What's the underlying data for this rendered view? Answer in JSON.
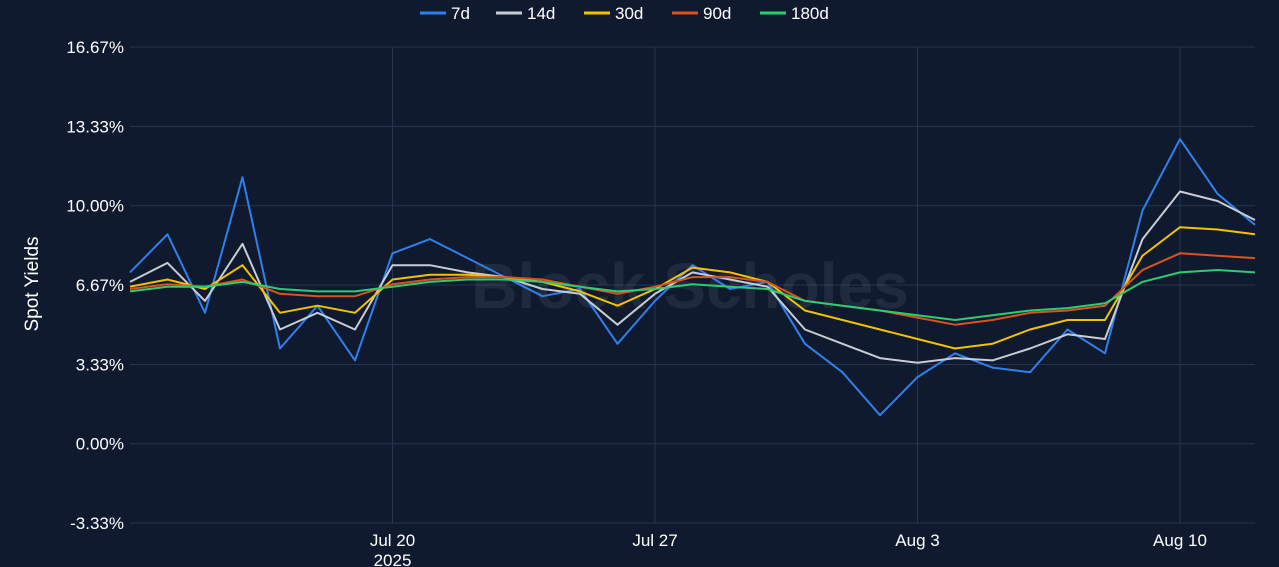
{
  "chart_data": {
    "type": "line",
    "ylabel": "Spot Yields",
    "ylim": [
      -3.33,
      16.67
    ],
    "y_ticks": [
      "16.67%",
      "13.33%",
      "10.00%",
      "6.67%",
      "3.33%",
      "0.00%",
      "-3.33%"
    ],
    "y_tick_values": [
      16.67,
      13.33,
      10.0,
      6.67,
      3.33,
      0.0,
      -3.33
    ],
    "x_range": [
      "2025-07-13",
      "2025-08-12"
    ],
    "x_ticks": [
      {
        "date": "2025-07-20",
        "label": "Jul 20",
        "sublabel": "2025"
      },
      {
        "date": "2025-07-27",
        "label": "Jul 27",
        "sublabel": ""
      },
      {
        "date": "2025-08-03",
        "label": "Aug 3",
        "sublabel": ""
      },
      {
        "date": "2025-08-10",
        "label": "Aug 10",
        "sublabel": ""
      }
    ],
    "grid": true,
    "legend_position": "top-center",
    "watermark": "Block Scholes",
    "series": [
      {
        "name": "7d",
        "color": "#2f80ed",
        "points": [
          [
            "2025-07-13",
            7.2
          ],
          [
            "2025-07-14",
            8.8
          ],
          [
            "2025-07-15",
            5.5
          ],
          [
            "2025-07-16",
            11.2
          ],
          [
            "2025-07-17",
            4.0
          ],
          [
            "2025-07-18",
            5.8
          ],
          [
            "2025-07-19",
            3.5
          ],
          [
            "2025-07-20",
            8.0
          ],
          [
            "2025-07-21",
            8.6
          ],
          [
            "2025-07-22",
            7.8
          ],
          [
            "2025-07-23",
            7.0
          ],
          [
            "2025-07-24",
            6.2
          ],
          [
            "2025-07-25",
            6.5
          ],
          [
            "2025-07-26",
            4.2
          ],
          [
            "2025-07-27",
            6.0
          ],
          [
            "2025-07-28",
            7.5
          ],
          [
            "2025-07-29",
            6.5
          ],
          [
            "2025-07-30",
            6.8
          ],
          [
            "2025-07-31",
            4.2
          ],
          [
            "2025-08-01",
            3.0
          ],
          [
            "2025-08-02",
            1.2
          ],
          [
            "2025-08-03",
            2.8
          ],
          [
            "2025-08-04",
            3.8
          ],
          [
            "2025-08-05",
            3.2
          ],
          [
            "2025-08-06",
            3.0
          ],
          [
            "2025-08-07",
            4.8
          ],
          [
            "2025-08-08",
            3.8
          ],
          [
            "2025-08-09",
            9.8
          ],
          [
            "2025-08-10",
            12.8
          ],
          [
            "2025-08-11",
            10.5
          ],
          [
            "2025-08-12",
            9.2
          ]
        ]
      },
      {
        "name": "14d",
        "color": "#c8ccd4",
        "points": [
          [
            "2025-07-13",
            6.8
          ],
          [
            "2025-07-14",
            7.6
          ],
          [
            "2025-07-15",
            6.0
          ],
          [
            "2025-07-16",
            8.4
          ],
          [
            "2025-07-17",
            4.8
          ],
          [
            "2025-07-18",
            5.5
          ],
          [
            "2025-07-19",
            4.8
          ],
          [
            "2025-07-20",
            7.5
          ],
          [
            "2025-07-21",
            7.5
          ],
          [
            "2025-07-22",
            7.2
          ],
          [
            "2025-07-23",
            7.0
          ],
          [
            "2025-07-24",
            6.5
          ],
          [
            "2025-07-25",
            6.3
          ],
          [
            "2025-07-26",
            5.0
          ],
          [
            "2025-07-27",
            6.3
          ],
          [
            "2025-07-28",
            7.2
          ],
          [
            "2025-07-29",
            6.9
          ],
          [
            "2025-07-30",
            6.6
          ],
          [
            "2025-07-31",
            4.8
          ],
          [
            "2025-08-01",
            4.2
          ],
          [
            "2025-08-02",
            3.6
          ],
          [
            "2025-08-03",
            3.4
          ],
          [
            "2025-08-04",
            3.6
          ],
          [
            "2025-08-05",
            3.5
          ],
          [
            "2025-08-06",
            4.0
          ],
          [
            "2025-08-07",
            4.6
          ],
          [
            "2025-08-08",
            4.4
          ],
          [
            "2025-08-09",
            8.6
          ],
          [
            "2025-08-10",
            10.6
          ],
          [
            "2025-08-11",
            10.2
          ],
          [
            "2025-08-12",
            9.4
          ]
        ]
      },
      {
        "name": "30d",
        "color": "#f2c200",
        "points": [
          [
            "2025-07-13",
            6.6
          ],
          [
            "2025-07-14",
            6.9
          ],
          [
            "2025-07-15",
            6.5
          ],
          [
            "2025-07-16",
            7.5
          ],
          [
            "2025-07-17",
            5.5
          ],
          [
            "2025-07-18",
            5.8
          ],
          [
            "2025-07-19",
            5.5
          ],
          [
            "2025-07-20",
            6.9
          ],
          [
            "2025-07-21",
            7.1
          ],
          [
            "2025-07-22",
            7.1
          ],
          [
            "2025-07-23",
            7.0
          ],
          [
            "2025-07-24",
            6.8
          ],
          [
            "2025-07-25",
            6.4
          ],
          [
            "2025-07-26",
            5.8
          ],
          [
            "2025-07-27",
            6.5
          ],
          [
            "2025-07-28",
            7.4
          ],
          [
            "2025-07-29",
            7.2
          ],
          [
            "2025-07-30",
            6.8
          ],
          [
            "2025-07-31",
            5.6
          ],
          [
            "2025-08-01",
            5.2
          ],
          [
            "2025-08-02",
            4.8
          ],
          [
            "2025-08-03",
            4.4
          ],
          [
            "2025-08-04",
            4.0
          ],
          [
            "2025-08-05",
            4.2
          ],
          [
            "2025-08-06",
            4.8
          ],
          [
            "2025-08-07",
            5.2
          ],
          [
            "2025-08-08",
            5.2
          ],
          [
            "2025-08-09",
            7.9
          ],
          [
            "2025-08-10",
            9.1
          ],
          [
            "2025-08-11",
            9.0
          ],
          [
            "2025-08-12",
            8.8
          ]
        ]
      },
      {
        "name": "90d",
        "color": "#d9531e",
        "points": [
          [
            "2025-07-13",
            6.5
          ],
          [
            "2025-07-14",
            6.7
          ],
          [
            "2025-07-15",
            6.6
          ],
          [
            "2025-07-16",
            6.9
          ],
          [
            "2025-07-17",
            6.3
          ],
          [
            "2025-07-18",
            6.2
          ],
          [
            "2025-07-19",
            6.2
          ],
          [
            "2025-07-20",
            6.7
          ],
          [
            "2025-07-21",
            6.9
          ],
          [
            "2025-07-22",
            7.0
          ],
          [
            "2025-07-23",
            7.0
          ],
          [
            "2025-07-24",
            6.9
          ],
          [
            "2025-07-25",
            6.6
          ],
          [
            "2025-07-26",
            6.3
          ],
          [
            "2025-07-27",
            6.6
          ],
          [
            "2025-07-28",
            7.0
          ],
          [
            "2025-07-29",
            7.0
          ],
          [
            "2025-07-30",
            6.8
          ],
          [
            "2025-07-31",
            6.0
          ],
          [
            "2025-08-01",
            5.8
          ],
          [
            "2025-08-02",
            5.6
          ],
          [
            "2025-08-03",
            5.3
          ],
          [
            "2025-08-04",
            5.0
          ],
          [
            "2025-08-05",
            5.2
          ],
          [
            "2025-08-06",
            5.5
          ],
          [
            "2025-08-07",
            5.6
          ],
          [
            "2025-08-08",
            5.8
          ],
          [
            "2025-08-09",
            7.3
          ],
          [
            "2025-08-10",
            8.0
          ],
          [
            "2025-08-11",
            7.9
          ],
          [
            "2025-08-12",
            7.8
          ]
        ]
      },
      {
        "name": "180d",
        "color": "#2ecc71",
        "points": [
          [
            "2025-07-13",
            6.4
          ],
          [
            "2025-07-14",
            6.6
          ],
          [
            "2025-07-15",
            6.6
          ],
          [
            "2025-07-16",
            6.8
          ],
          [
            "2025-07-17",
            6.5
          ],
          [
            "2025-07-18",
            6.4
          ],
          [
            "2025-07-19",
            6.4
          ],
          [
            "2025-07-20",
            6.6
          ],
          [
            "2025-07-21",
            6.8
          ],
          [
            "2025-07-22",
            6.9
          ],
          [
            "2025-07-23",
            6.9
          ],
          [
            "2025-07-24",
            6.8
          ],
          [
            "2025-07-25",
            6.6
          ],
          [
            "2025-07-26",
            6.4
          ],
          [
            "2025-07-27",
            6.5
          ],
          [
            "2025-07-28",
            6.7
          ],
          [
            "2025-07-29",
            6.6
          ],
          [
            "2025-07-30",
            6.5
          ],
          [
            "2025-07-31",
            6.0
          ],
          [
            "2025-08-01",
            5.8
          ],
          [
            "2025-08-02",
            5.6
          ],
          [
            "2025-08-03",
            5.4
          ],
          [
            "2025-08-04",
            5.2
          ],
          [
            "2025-08-05",
            5.4
          ],
          [
            "2025-08-06",
            5.6
          ],
          [
            "2025-08-07",
            5.7
          ],
          [
            "2025-08-08",
            5.9
          ],
          [
            "2025-08-09",
            6.8
          ],
          [
            "2025-08-10",
            7.2
          ],
          [
            "2025-08-11",
            7.3
          ],
          [
            "2025-08-12",
            7.2
          ]
        ]
      }
    ]
  }
}
